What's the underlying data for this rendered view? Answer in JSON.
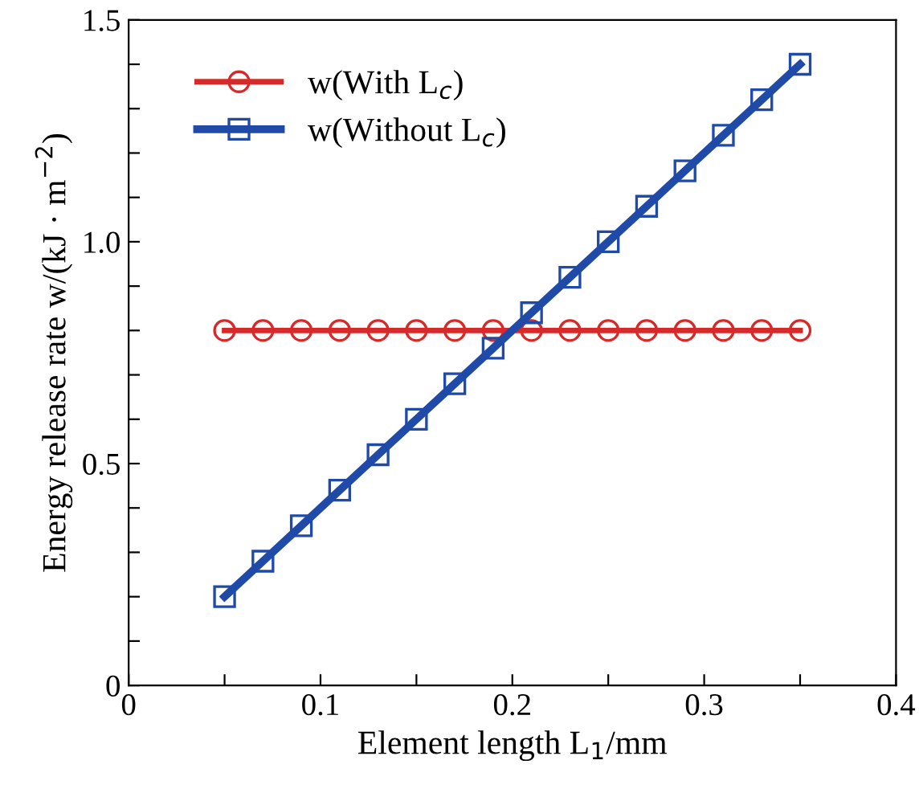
{
  "chart_data": {
    "type": "line",
    "xlabel": "Element length L$_{1}$/mm",
    "ylabel": "Energy release rate w/(kJ · m$^{−2}$)",
    "x": [
      0.05,
      0.07,
      0.09,
      0.11,
      0.13,
      0.15,
      0.17,
      0.19,
      0.21,
      0.23,
      0.25,
      0.27,
      0.29,
      0.31,
      0.33,
      0.35
    ],
    "series": [
      {
        "name": "w(With L$_{c}$)",
        "color": "#d62a2a",
        "marker": "circle",
        "values": [
          0.8,
          0.8,
          0.8,
          0.8,
          0.8,
          0.8,
          0.8,
          0.8,
          0.8,
          0.8,
          0.8,
          0.8,
          0.8,
          0.8,
          0.8,
          0.8
        ]
      },
      {
        "name": "w(Without L$_{c}$)",
        "color": "#1f4aa8",
        "marker": "square",
        "values": [
          0.2,
          0.28,
          0.36,
          0.44,
          0.52,
          0.6,
          0.68,
          0.76,
          0.84,
          0.92,
          1.0,
          1.08,
          1.16,
          1.24,
          1.32,
          1.4
        ]
      }
    ],
    "xlim": [
      0,
      0.4
    ],
    "ylim": [
      0,
      1.5
    ],
    "xticks": [
      0,
      {
        "value": 0.05,
        "label": null
      },
      0.1,
      {
        "value": 0.15,
        "label": null
      },
      0.2,
      {
        "value": 0.25,
        "label": null
      },
      0.3,
      {
        "value": 0.35,
        "label": null
      },
      0.4
    ],
    "yticks": [
      0,
      {
        "value": 0.1,
        "label": null
      },
      {
        "value": 0.2,
        "label": null
      },
      {
        "value": 0.3,
        "label": null
      },
      {
        "value": 0.4,
        "label": null
      },
      0.5,
      {
        "value": 0.6,
        "label": null
      },
      {
        "value": 0.7,
        "label": null
      },
      {
        "value": 0.8,
        "label": null
      },
      {
        "value": 0.9,
        "label": null
      },
      {
        "value": 1.0,
        "label": "1.0"
      },
      {
        "value": 1.1,
        "label": null
      },
      {
        "value": 1.2,
        "label": null
      },
      {
        "value": 1.3,
        "label": null
      },
      {
        "value": 1.4,
        "label": null
      },
      1.5
    ],
    "grid": false,
    "legend": "top left",
    "line_style": "solid"
  }
}
